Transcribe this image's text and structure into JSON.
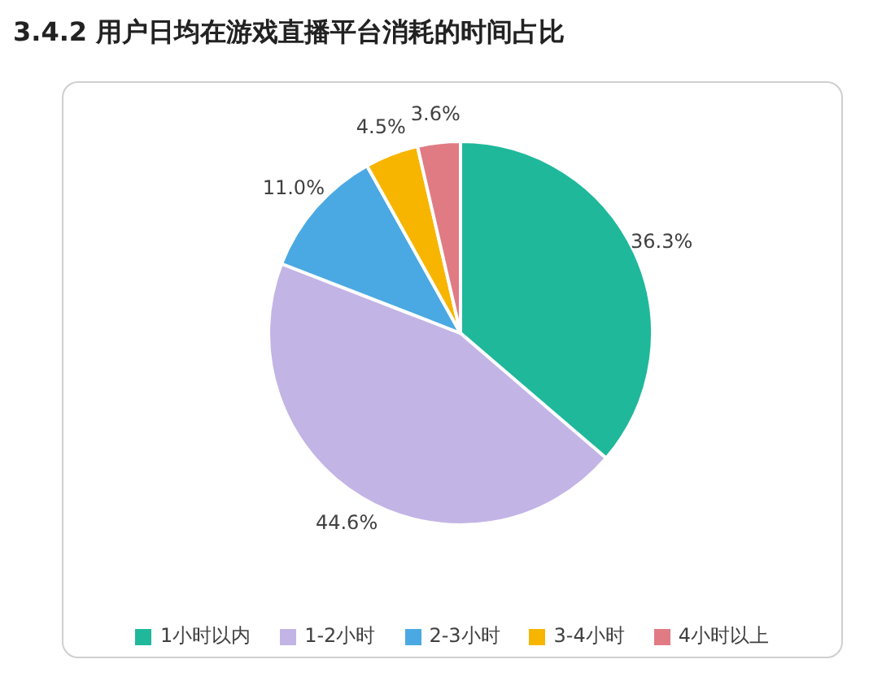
{
  "chart_data": {
    "type": "pie",
    "title": "3.4.2  用户日均在游戏直播平台消耗的时间占比",
    "categories": [
      "1小时以内",
      "1-2小时",
      "2-3小时",
      "3-4小时",
      "4小时以上"
    ],
    "values": [
      36.3,
      44.6,
      11.0,
      4.5,
      3.6
    ],
    "value_labels": [
      "36.3%",
      "44.6%",
      "11.0%",
      "4.5%",
      "3.6%"
    ],
    "colors": [
      "#1fb89b",
      "#c3b4e6",
      "#4aa9e2",
      "#f7b500",
      "#e07b83"
    ],
    "legend": "bottom"
  }
}
